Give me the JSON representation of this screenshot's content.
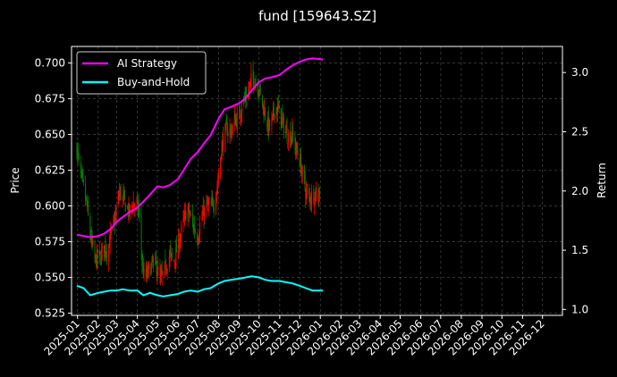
{
  "chart_data": {
    "type": "line",
    "title": "fund [159643.SZ]",
    "xlabel": "",
    "ylabel": "Price",
    "y2label": "Return",
    "x_ticks": [
      "2025-01",
      "2025-02",
      "2025-03",
      "2025-04",
      "2025-05",
      "2025-06",
      "2025-07",
      "2025-08",
      "2025-09",
      "2025-10",
      "2025-11",
      "2025-12",
      "2026-01",
      "2026-02",
      "2026-03",
      "2026-04",
      "2026-05",
      "2026-06",
      "2026-07",
      "2026-08",
      "2026-09",
      "2026-10",
      "2026-11",
      "2026-12"
    ],
    "xlim": [
      "2024-12-23",
      "2026-12-31"
    ],
    "ylim": [
      0.5235,
      0.7115
    ],
    "y_ticks": [
      0.525,
      0.55,
      0.575,
      0.6,
      0.625,
      0.65,
      0.675,
      0.7
    ],
    "y_tick_labels": [
      "0.525",
      "0.550",
      "0.575",
      "0.600",
      "0.625",
      "0.650",
      "0.675",
      "0.700"
    ],
    "y2lim": [
      0.95,
      3.22
    ],
    "y2_ticks": [
      1.0,
      1.5,
      2.0,
      2.5,
      3.0
    ],
    "y2_tick_labels": [
      "1.0",
      "1.5",
      "2.0",
      "2.5",
      "3.0"
    ],
    "grid": true,
    "legend_position": "top-left",
    "colors": {
      "background": "#000000",
      "ai": "#ff00ff",
      "bh": "#00ffff",
      "up": "#ff0000",
      "down": "#008000",
      "grid": "#555555"
    },
    "series": [
      {
        "name": "AI Strategy",
        "axis": "right",
        "color": "#ff00ff",
        "points": [
          [
            "2024-12-31",
            1.63
          ],
          [
            "2025-01-10",
            1.62
          ],
          [
            "2025-01-20",
            1.61
          ],
          [
            "2025-02-01",
            1.62
          ],
          [
            "2025-02-10",
            1.64
          ],
          [
            "2025-02-20",
            1.68
          ],
          [
            "2025-03-01",
            1.74
          ],
          [
            "2025-03-10",
            1.78
          ],
          [
            "2025-03-20",
            1.82
          ],
          [
            "2025-04-01",
            1.86
          ],
          [
            "2025-04-10",
            1.91
          ],
          [
            "2025-04-20",
            1.97
          ],
          [
            "2025-05-01",
            2.04
          ],
          [
            "2025-05-10",
            2.03
          ],
          [
            "2025-05-20",
            2.05
          ],
          [
            "2025-06-01",
            2.1
          ],
          [
            "2025-06-10",
            2.18
          ],
          [
            "2025-06-20",
            2.27
          ],
          [
            "2025-07-01",
            2.33
          ],
          [
            "2025-07-10",
            2.4
          ],
          [
            "2025-07-20",
            2.47
          ],
          [
            "2025-08-01",
            2.61
          ],
          [
            "2025-08-10",
            2.69
          ],
          [
            "2025-08-20",
            2.71
          ],
          [
            "2025-09-01",
            2.74
          ],
          [
            "2025-09-10",
            2.78
          ],
          [
            "2025-09-20",
            2.85
          ],
          [
            "2025-10-01",
            2.92
          ],
          [
            "2025-10-10",
            2.95
          ],
          [
            "2025-10-20",
            2.96
          ],
          [
            "2025-11-01",
            2.98
          ],
          [
            "2025-11-10",
            3.02
          ],
          [
            "2025-11-20",
            3.06
          ],
          [
            "2025-12-01",
            3.09
          ],
          [
            "2025-12-10",
            3.11
          ],
          [
            "2025-12-20",
            3.12
          ],
          [
            "2026-01-05",
            3.11
          ]
        ]
      },
      {
        "name": "Buy-and-Hold",
        "axis": "right",
        "color": "#00ffff",
        "points": [
          [
            "2024-12-31",
            1.2
          ],
          [
            "2025-01-10",
            1.18
          ],
          [
            "2025-01-20",
            1.12
          ],
          [
            "2025-02-01",
            1.14
          ],
          [
            "2025-02-10",
            1.15
          ],
          [
            "2025-02-20",
            1.16
          ],
          [
            "2025-03-01",
            1.16
          ],
          [
            "2025-03-10",
            1.17
          ],
          [
            "2025-03-20",
            1.16
          ],
          [
            "2025-04-01",
            1.16
          ],
          [
            "2025-04-10",
            1.12
          ],
          [
            "2025-04-20",
            1.14
          ],
          [
            "2025-05-01",
            1.12
          ],
          [
            "2025-05-10",
            1.11
          ],
          [
            "2025-05-20",
            1.12
          ],
          [
            "2025-06-01",
            1.13
          ],
          [
            "2025-06-10",
            1.15
          ],
          [
            "2025-06-20",
            1.16
          ],
          [
            "2025-07-01",
            1.15
          ],
          [
            "2025-07-10",
            1.17
          ],
          [
            "2025-07-20",
            1.18
          ],
          [
            "2025-08-01",
            1.22
          ],
          [
            "2025-08-10",
            1.24
          ],
          [
            "2025-08-20",
            1.25
          ],
          [
            "2025-09-01",
            1.26
          ],
          [
            "2025-09-10",
            1.27
          ],
          [
            "2025-09-20",
            1.28
          ],
          [
            "2025-10-01",
            1.27
          ],
          [
            "2025-10-10",
            1.25
          ],
          [
            "2025-10-20",
            1.24
          ],
          [
            "2025-11-01",
            1.24
          ],
          [
            "2025-11-10",
            1.23
          ],
          [
            "2025-11-20",
            1.22
          ],
          [
            "2025-12-01",
            1.2
          ],
          [
            "2025-12-10",
            1.18
          ],
          [
            "2025-12-20",
            1.16
          ],
          [
            "2026-01-05",
            1.16
          ]
        ]
      },
      {
        "name": "",
        "axis": "left",
        "kind": "close",
        "points": [
          [
            "2024-12-31",
            0.64
          ],
          [
            "2025-01-05",
            0.622
          ],
          [
            "2025-01-10",
            0.612
          ],
          [
            "2025-01-15",
            0.6
          ],
          [
            "2025-01-20",
            0.58
          ],
          [
            "2025-01-27",
            0.562
          ],
          [
            "2025-02-05",
            0.565
          ],
          [
            "2025-02-10",
            0.572
          ],
          [
            "2025-02-15",
            0.568
          ],
          [
            "2025-02-20",
            0.58
          ],
          [
            "2025-02-25",
            0.588
          ],
          [
            "2025-03-01",
            0.598
          ],
          [
            "2025-03-05",
            0.61
          ],
          [
            "2025-03-10",
            0.605
          ],
          [
            "2025-03-15",
            0.6
          ],
          [
            "2025-03-20",
            0.595
          ],
          [
            "2025-03-25",
            0.603
          ],
          [
            "2025-04-01",
            0.6
          ],
          [
            "2025-04-05",
            0.59
          ],
          [
            "2025-04-08",
            0.56
          ],
          [
            "2025-04-12",
            0.548
          ],
          [
            "2025-04-18",
            0.555
          ],
          [
            "2025-04-25",
            0.56
          ],
          [
            "2025-05-01",
            0.556
          ],
          [
            "2025-05-05",
            0.548
          ],
          [
            "2025-05-10",
            0.552
          ],
          [
            "2025-05-15",
            0.56
          ],
          [
            "2025-05-20",
            0.566
          ],
          [
            "2025-05-25",
            0.56
          ],
          [
            "2025-06-01",
            0.572
          ],
          [
            "2025-06-05",
            0.58
          ],
          [
            "2025-06-10",
            0.59
          ],
          [
            "2025-06-15",
            0.598
          ],
          [
            "2025-06-20",
            0.592
          ],
          [
            "2025-06-25",
            0.585
          ],
          [
            "2025-07-01",
            0.578
          ],
          [
            "2025-07-05",
            0.59
          ],
          [
            "2025-07-10",
            0.595
          ],
          [
            "2025-07-15",
            0.6
          ],
          [
            "2025-07-20",
            0.598
          ],
          [
            "2025-07-25",
            0.603
          ],
          [
            "2025-08-01",
            0.62
          ],
          [
            "2025-08-05",
            0.64
          ],
          [
            "2025-08-10",
            0.65
          ],
          [
            "2025-08-15",
            0.655
          ],
          [
            "2025-08-20",
            0.652
          ],
          [
            "2025-08-25",
            0.66
          ],
          [
            "2025-09-01",
            0.662
          ],
          [
            "2025-09-05",
            0.672
          ],
          [
            "2025-09-10",
            0.675
          ],
          [
            "2025-09-15",
            0.68
          ],
          [
            "2025-09-20",
            0.69
          ],
          [
            "2025-09-25",
            0.688
          ],
          [
            "2025-10-01",
            0.682
          ],
          [
            "2025-10-05",
            0.672
          ],
          [
            "2025-10-10",
            0.665
          ],
          [
            "2025-10-15",
            0.655
          ],
          [
            "2025-10-20",
            0.658
          ],
          [
            "2025-10-25",
            0.67
          ],
          [
            "2025-11-01",
            0.665
          ],
          [
            "2025-11-05",
            0.658
          ],
          [
            "2025-11-10",
            0.652
          ],
          [
            "2025-11-15",
            0.648
          ],
          [
            "2025-11-20",
            0.65
          ],
          [
            "2025-11-25",
            0.64
          ],
          [
            "2025-12-01",
            0.632
          ],
          [
            "2025-12-05",
            0.622
          ],
          [
            "2025-12-10",
            0.61
          ],
          [
            "2025-12-15",
            0.605
          ],
          [
            "2025-12-20",
            0.608
          ],
          [
            "2026-01-05",
            0.61
          ]
        ]
      }
    ]
  }
}
